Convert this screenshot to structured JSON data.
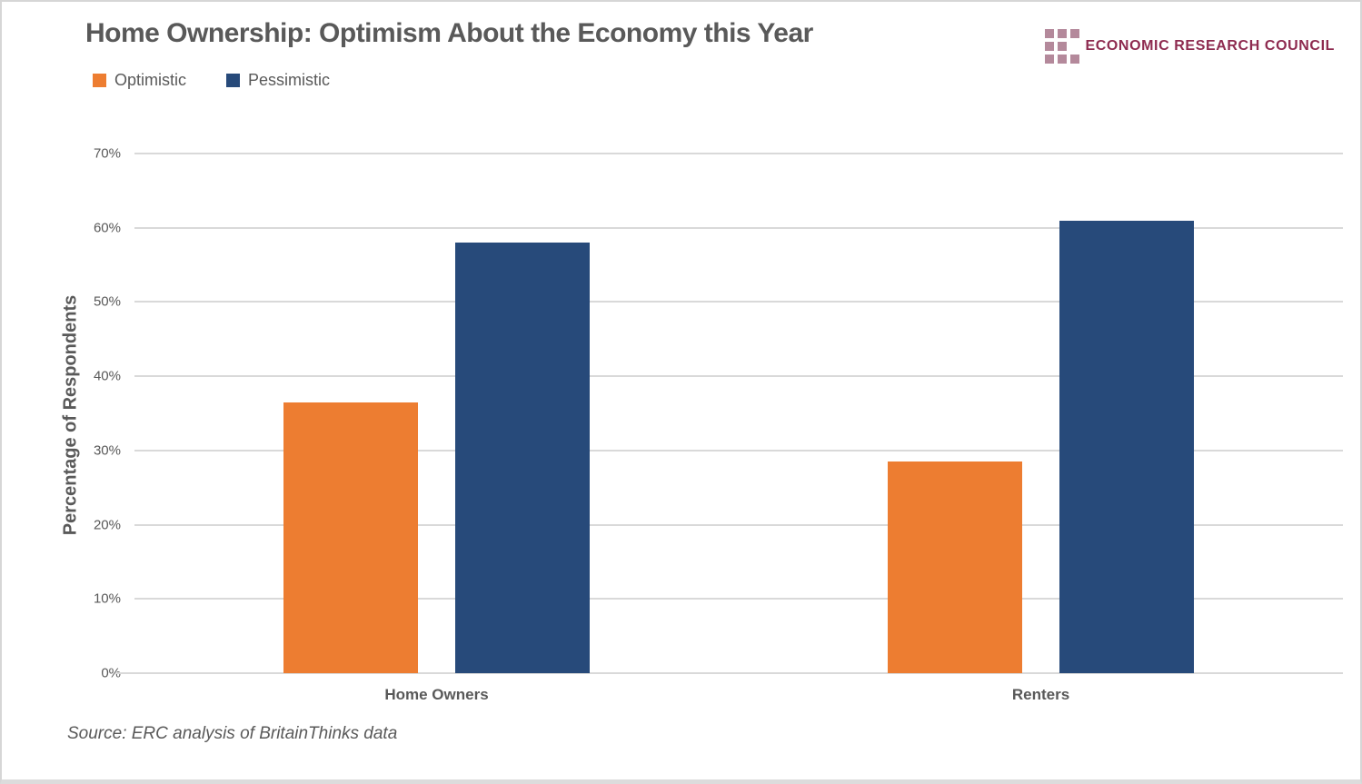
{
  "title": "Home Ownership: Optimism About the Economy this Year",
  "source": "Source: ERC analysis of BritainThinks data",
  "logo": {
    "text": "ECONOMIC RESEARCH COUNCIL",
    "square_color": "#b4899b",
    "text_color": "#8e2b50",
    "grid_rows": [
      3,
      2,
      3
    ]
  },
  "colors": {
    "text": "#595959",
    "gridline": "#d9d9d9",
    "optimistic": "#ed7d31",
    "pessimistic": "#274a7a"
  },
  "chart_data": {
    "type": "bar",
    "title": "Home Ownership: Optimism About the Economy this Year",
    "categories": [
      "Home Owners",
      "Renters"
    ],
    "series": [
      {
        "name": "Optimistic",
        "color": "#ed7d31",
        "values": [
          36.5,
          28.5
        ]
      },
      {
        "name": "Pessimistic",
        "color": "#274a7a",
        "values": [
          58,
          61
        ]
      }
    ],
    "xlabel": "",
    "ylabel": "Percentage of Respondents",
    "ylim": [
      0,
      70
    ],
    "ytick_step": 10,
    "ytick_suffix": "%",
    "grid": true,
    "legend_position": "top-left",
    "annotation": "Source: ERC analysis of BritainThinks data"
  }
}
